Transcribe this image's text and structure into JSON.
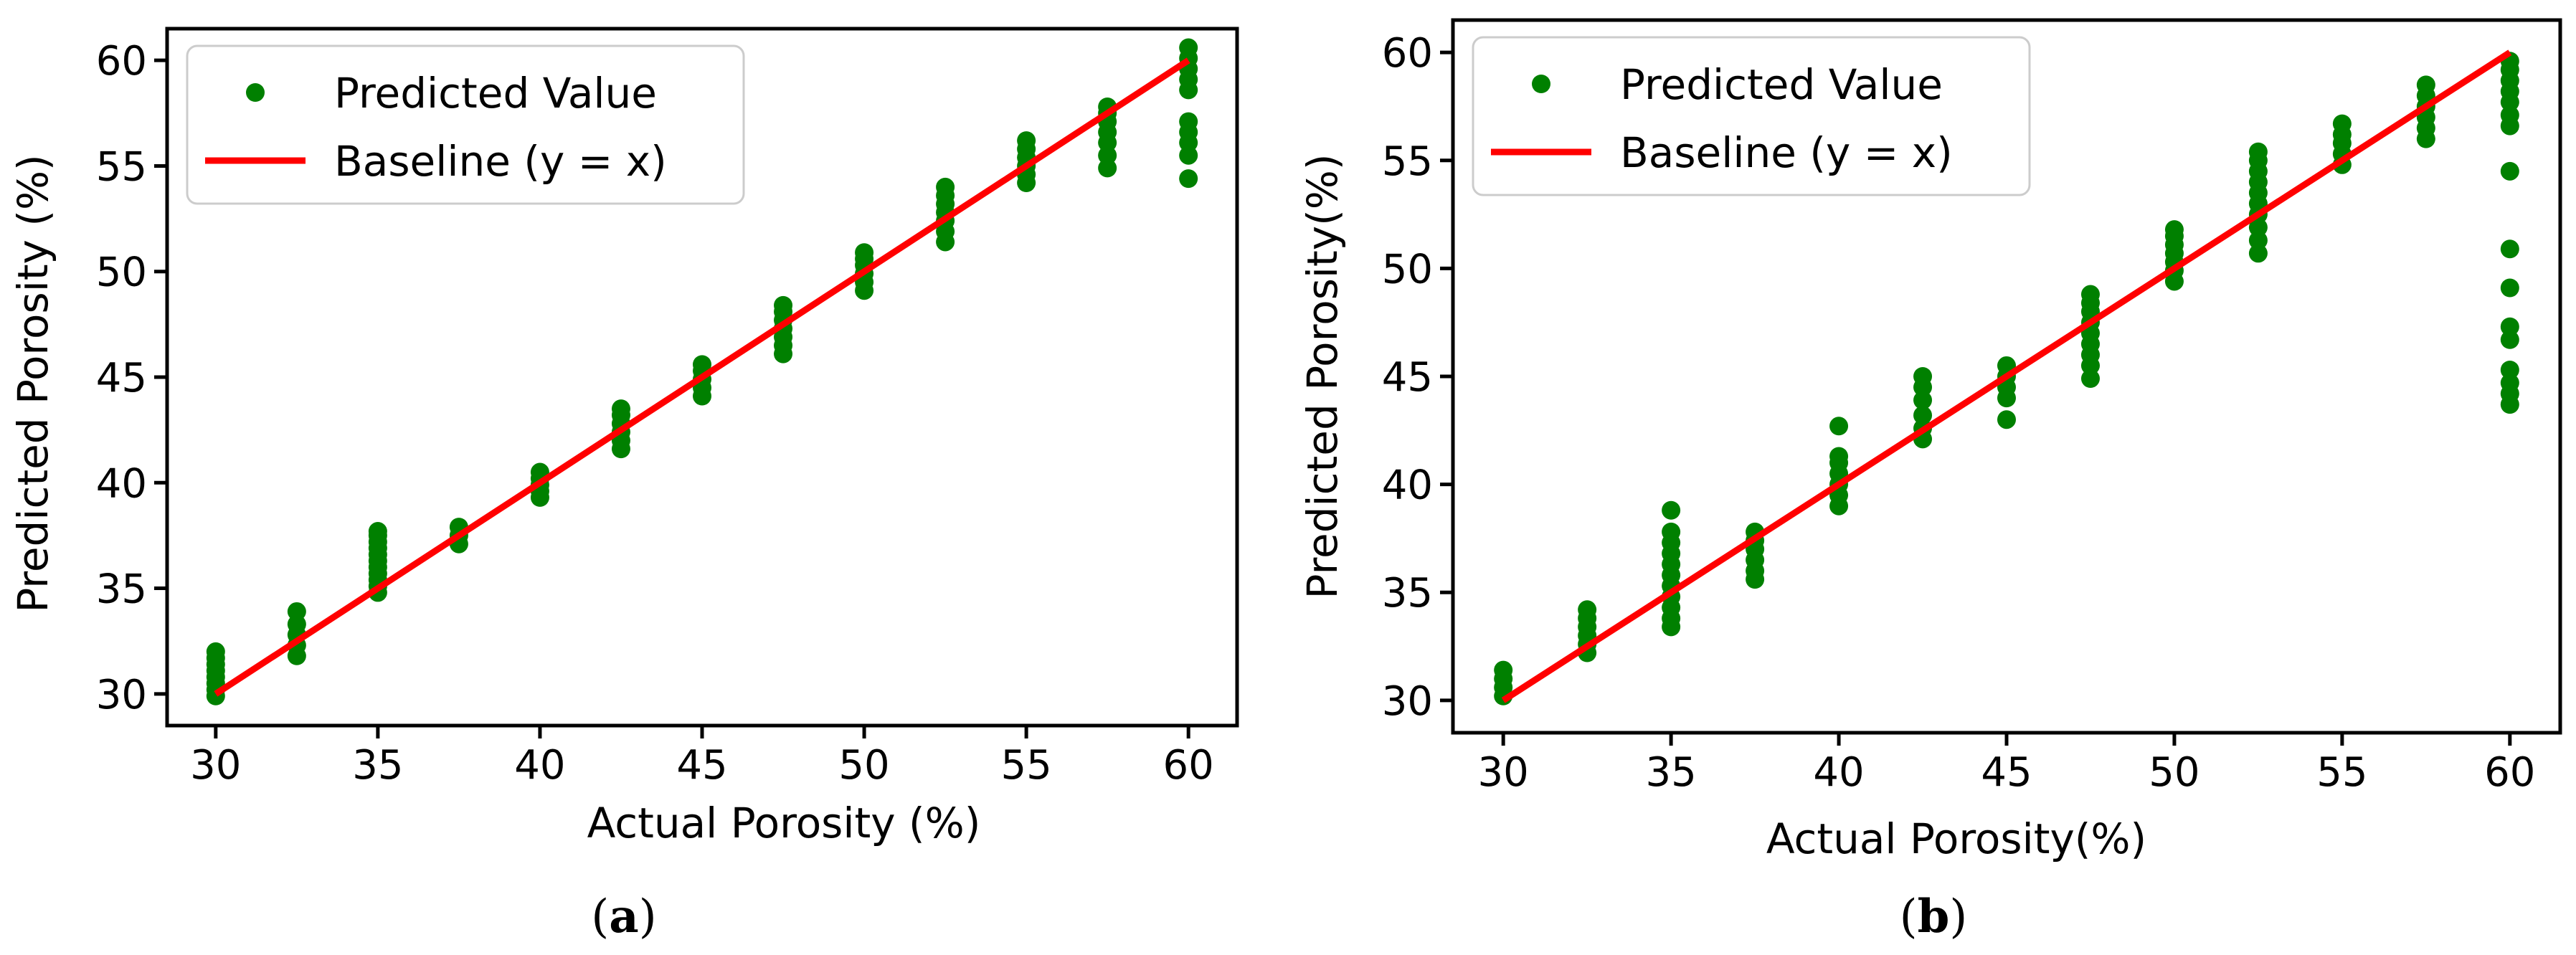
{
  "colors": {
    "points": "#008000",
    "baseline": "#ff0000",
    "axes": "#000000"
  },
  "chart_data": [
    {
      "type": "scatter",
      "caption_letter": "a",
      "caption": "(a)",
      "xlabel": "Actual Porosity (%)",
      "ylabel": "Predicted Porosity (%)",
      "xlim": [
        28.5,
        61.5
      ],
      "ylim": [
        28.5,
        61.5
      ],
      "xticks": [
        30,
        35,
        40,
        45,
        50,
        55,
        60
      ],
      "yticks": [
        30,
        35,
        40,
        45,
        50,
        55,
        60
      ],
      "legend_position": "top-left",
      "series": [
        {
          "name": "Predicted Value",
          "type": "scatter",
          "points": [
            [
              30,
              29.9
            ],
            [
              30,
              30.2
            ],
            [
              30,
              30.5
            ],
            [
              30,
              30.8
            ],
            [
              30,
              31.1
            ],
            [
              30,
              31.4
            ],
            [
              30,
              31.7
            ],
            [
              30,
              32.0
            ],
            [
              32.5,
              31.8
            ],
            [
              32.5,
              32.3
            ],
            [
              32.5,
              32.8
            ],
            [
              32.5,
              33.3
            ],
            [
              32.5,
              33.9
            ],
            [
              35,
              34.8
            ],
            [
              35,
              35.1
            ],
            [
              35,
              35.4
            ],
            [
              35,
              35.7
            ],
            [
              35,
              36.0
            ],
            [
              35,
              36.3
            ],
            [
              35,
              36.6
            ],
            [
              35,
              36.9
            ],
            [
              35,
              37.2
            ],
            [
              35,
              37.5
            ],
            [
              35,
              37.7
            ],
            [
              37.5,
              37.1
            ],
            [
              37.5,
              37.5
            ],
            [
              37.5,
              37.9
            ],
            [
              40,
              39.3
            ],
            [
              40,
              39.6
            ],
            [
              40,
              39.9
            ],
            [
              40,
              40.2
            ],
            [
              40,
              40.5
            ],
            [
              42.5,
              41.6
            ],
            [
              42.5,
              42.0
            ],
            [
              42.5,
              42.4
            ],
            [
              42.5,
              42.8
            ],
            [
              42.5,
              43.2
            ],
            [
              42.5,
              43.5
            ],
            [
              45,
              44.1
            ],
            [
              45,
              44.5
            ],
            [
              45,
              44.9
            ],
            [
              45,
              45.3
            ],
            [
              45,
              45.6
            ],
            [
              47.5,
              46.1
            ],
            [
              47.5,
              46.5
            ],
            [
              47.5,
              46.9
            ],
            [
              47.5,
              47.3
            ],
            [
              47.5,
              47.7
            ],
            [
              47.5,
              48.1
            ],
            [
              47.5,
              48.4
            ],
            [
              50,
              49.1
            ],
            [
              50,
              49.5
            ],
            [
              50,
              49.9
            ],
            [
              50,
              50.3
            ],
            [
              50,
              50.6
            ],
            [
              50,
              50.9
            ],
            [
              52.5,
              51.4
            ],
            [
              52.5,
              51.9
            ],
            [
              52.5,
              52.4
            ],
            [
              52.5,
              52.8
            ],
            [
              52.5,
              53.2
            ],
            [
              52.5,
              53.6
            ],
            [
              52.5,
              54.0
            ],
            [
              55,
              54.2
            ],
            [
              55,
              54.6
            ],
            [
              55,
              55.0
            ],
            [
              55,
              55.4
            ],
            [
              55,
              55.8
            ],
            [
              55,
              56.2
            ],
            [
              57.5,
              54.9
            ],
            [
              57.5,
              55.5
            ],
            [
              57.5,
              56.1
            ],
            [
              57.5,
              56.6
            ],
            [
              57.5,
              57.1
            ],
            [
              57.5,
              57.5
            ],
            [
              57.5,
              57.8
            ],
            [
              60,
              54.4
            ],
            [
              60,
              55.5
            ],
            [
              60,
              56.1
            ],
            [
              60,
              56.6
            ],
            [
              60,
              57.1
            ],
            [
              60,
              58.6
            ],
            [
              60,
              59.1
            ],
            [
              60,
              59.6
            ],
            [
              60,
              60.1
            ],
            [
              60,
              60.6
            ]
          ]
        },
        {
          "name": "Baseline (y = x)",
          "type": "line",
          "points": [
            [
              30,
              30
            ],
            [
              60,
              60
            ]
          ]
        }
      ]
    },
    {
      "type": "scatter",
      "caption_letter": "b",
      "caption": "(b)",
      "xlabel": "Actual Porosity(%)",
      "ylabel": "Predicted Porosity(%)",
      "xlim": [
        28.5,
        61.5
      ],
      "ylim": [
        28.5,
        61.5
      ],
      "xticks": [
        30,
        35,
        40,
        45,
        50,
        55,
        60
      ],
      "yticks": [
        30,
        35,
        40,
        45,
        50,
        55,
        60
      ],
      "legend_position": "top-left",
      "series": [
        {
          "name": "Predicted Value",
          "type": "scatter",
          "points": [
            [
              30,
              30.2
            ],
            [
              30,
              30.6
            ],
            [
              30,
              31.0
            ],
            [
              30,
              31.4
            ],
            [
              32.5,
              32.2
            ],
            [
              32.5,
              32.6
            ],
            [
              32.5,
              33.0
            ],
            [
              32.5,
              33.4
            ],
            [
              32.5,
              33.8
            ],
            [
              32.5,
              34.2
            ],
            [
              35,
              33.4
            ],
            [
              35,
              33.8
            ],
            [
              35,
              34.3
            ],
            [
              35,
              34.8
            ],
            [
              35,
              35.3
            ],
            [
              35,
              35.8
            ],
            [
              35,
              36.3
            ],
            [
              35,
              36.8
            ],
            [
              35,
              37.3
            ],
            [
              35,
              37.8
            ],
            [
              35,
              38.8
            ],
            [
              37.5,
              35.6
            ],
            [
              37.5,
              36.0
            ],
            [
              37.5,
              36.5
            ],
            [
              37.5,
              37.0
            ],
            [
              37.5,
              37.4
            ],
            [
              37.5,
              37.8
            ],
            [
              40,
              39.0
            ],
            [
              40,
              39.5
            ],
            [
              40,
              40.0
            ],
            [
              40,
              40.5
            ],
            [
              40,
              41.0
            ],
            [
              40,
              41.3
            ],
            [
              40,
              42.7
            ],
            [
              42.5,
              42.1
            ],
            [
              42.5,
              42.6
            ],
            [
              42.5,
              43.2
            ],
            [
              42.5,
              43.9
            ],
            [
              42.5,
              44.5
            ],
            [
              42.5,
              45.0
            ],
            [
              45,
              43.0
            ],
            [
              45,
              44.0
            ],
            [
              45,
              44.5
            ],
            [
              45,
              45.0
            ],
            [
              45,
              45.5
            ],
            [
              47.5,
              44.9
            ],
            [
              47.5,
              45.5
            ],
            [
              47.5,
              46.0
            ],
            [
              47.5,
              46.5
            ],
            [
              47.5,
              47.0
            ],
            [
              47.5,
              47.5
            ],
            [
              47.5,
              48.0
            ],
            [
              47.5,
              48.4
            ],
            [
              47.5,
              48.8
            ],
            [
              50,
              49.4
            ],
            [
              50,
              49.9
            ],
            [
              50,
              50.3
            ],
            [
              50,
              50.7
            ],
            [
              50,
              51.1
            ],
            [
              50,
              51.5
            ],
            [
              50,
              51.8
            ],
            [
              52.5,
              50.7
            ],
            [
              52.5,
              51.3
            ],
            [
              52.5,
              51.9
            ],
            [
              52.5,
              52.5
            ],
            [
              52.5,
              53.0
            ],
            [
              52.5,
              53.5
            ],
            [
              52.5,
              54.0
            ],
            [
              52.5,
              54.5
            ],
            [
              52.5,
              55.0
            ],
            [
              52.5,
              55.4
            ],
            [
              55,
              54.8
            ],
            [
              55,
              55.3
            ],
            [
              55,
              55.8
            ],
            [
              55,
              56.2
            ],
            [
              55,
              56.7
            ],
            [
              57.5,
              56.0
            ],
            [
              57.5,
              56.5
            ],
            [
              57.5,
              57.0
            ],
            [
              57.5,
              57.5
            ],
            [
              57.5,
              58.0
            ],
            [
              57.5,
              58.5
            ],
            [
              60,
              43.7
            ],
            [
              60,
              44.2
            ],
            [
              60,
              44.7
            ],
            [
              60,
              45.3
            ],
            [
              60,
              46.7
            ],
            [
              60,
              47.3
            ],
            [
              60,
              49.1
            ],
            [
              60,
              50.9
            ],
            [
              60,
              54.5
            ],
            [
              60,
              56.6
            ],
            [
              60,
              57.1
            ],
            [
              60,
              57.7
            ],
            [
              60,
              58.2
            ],
            [
              60,
              58.7
            ],
            [
              60,
              59.2
            ],
            [
              60,
              59.6
            ]
          ]
        },
        {
          "name": "Baseline (y = x)",
          "type": "line",
          "points": [
            [
              30,
              30
            ],
            [
              60,
              60
            ]
          ]
        }
      ]
    }
  ]
}
